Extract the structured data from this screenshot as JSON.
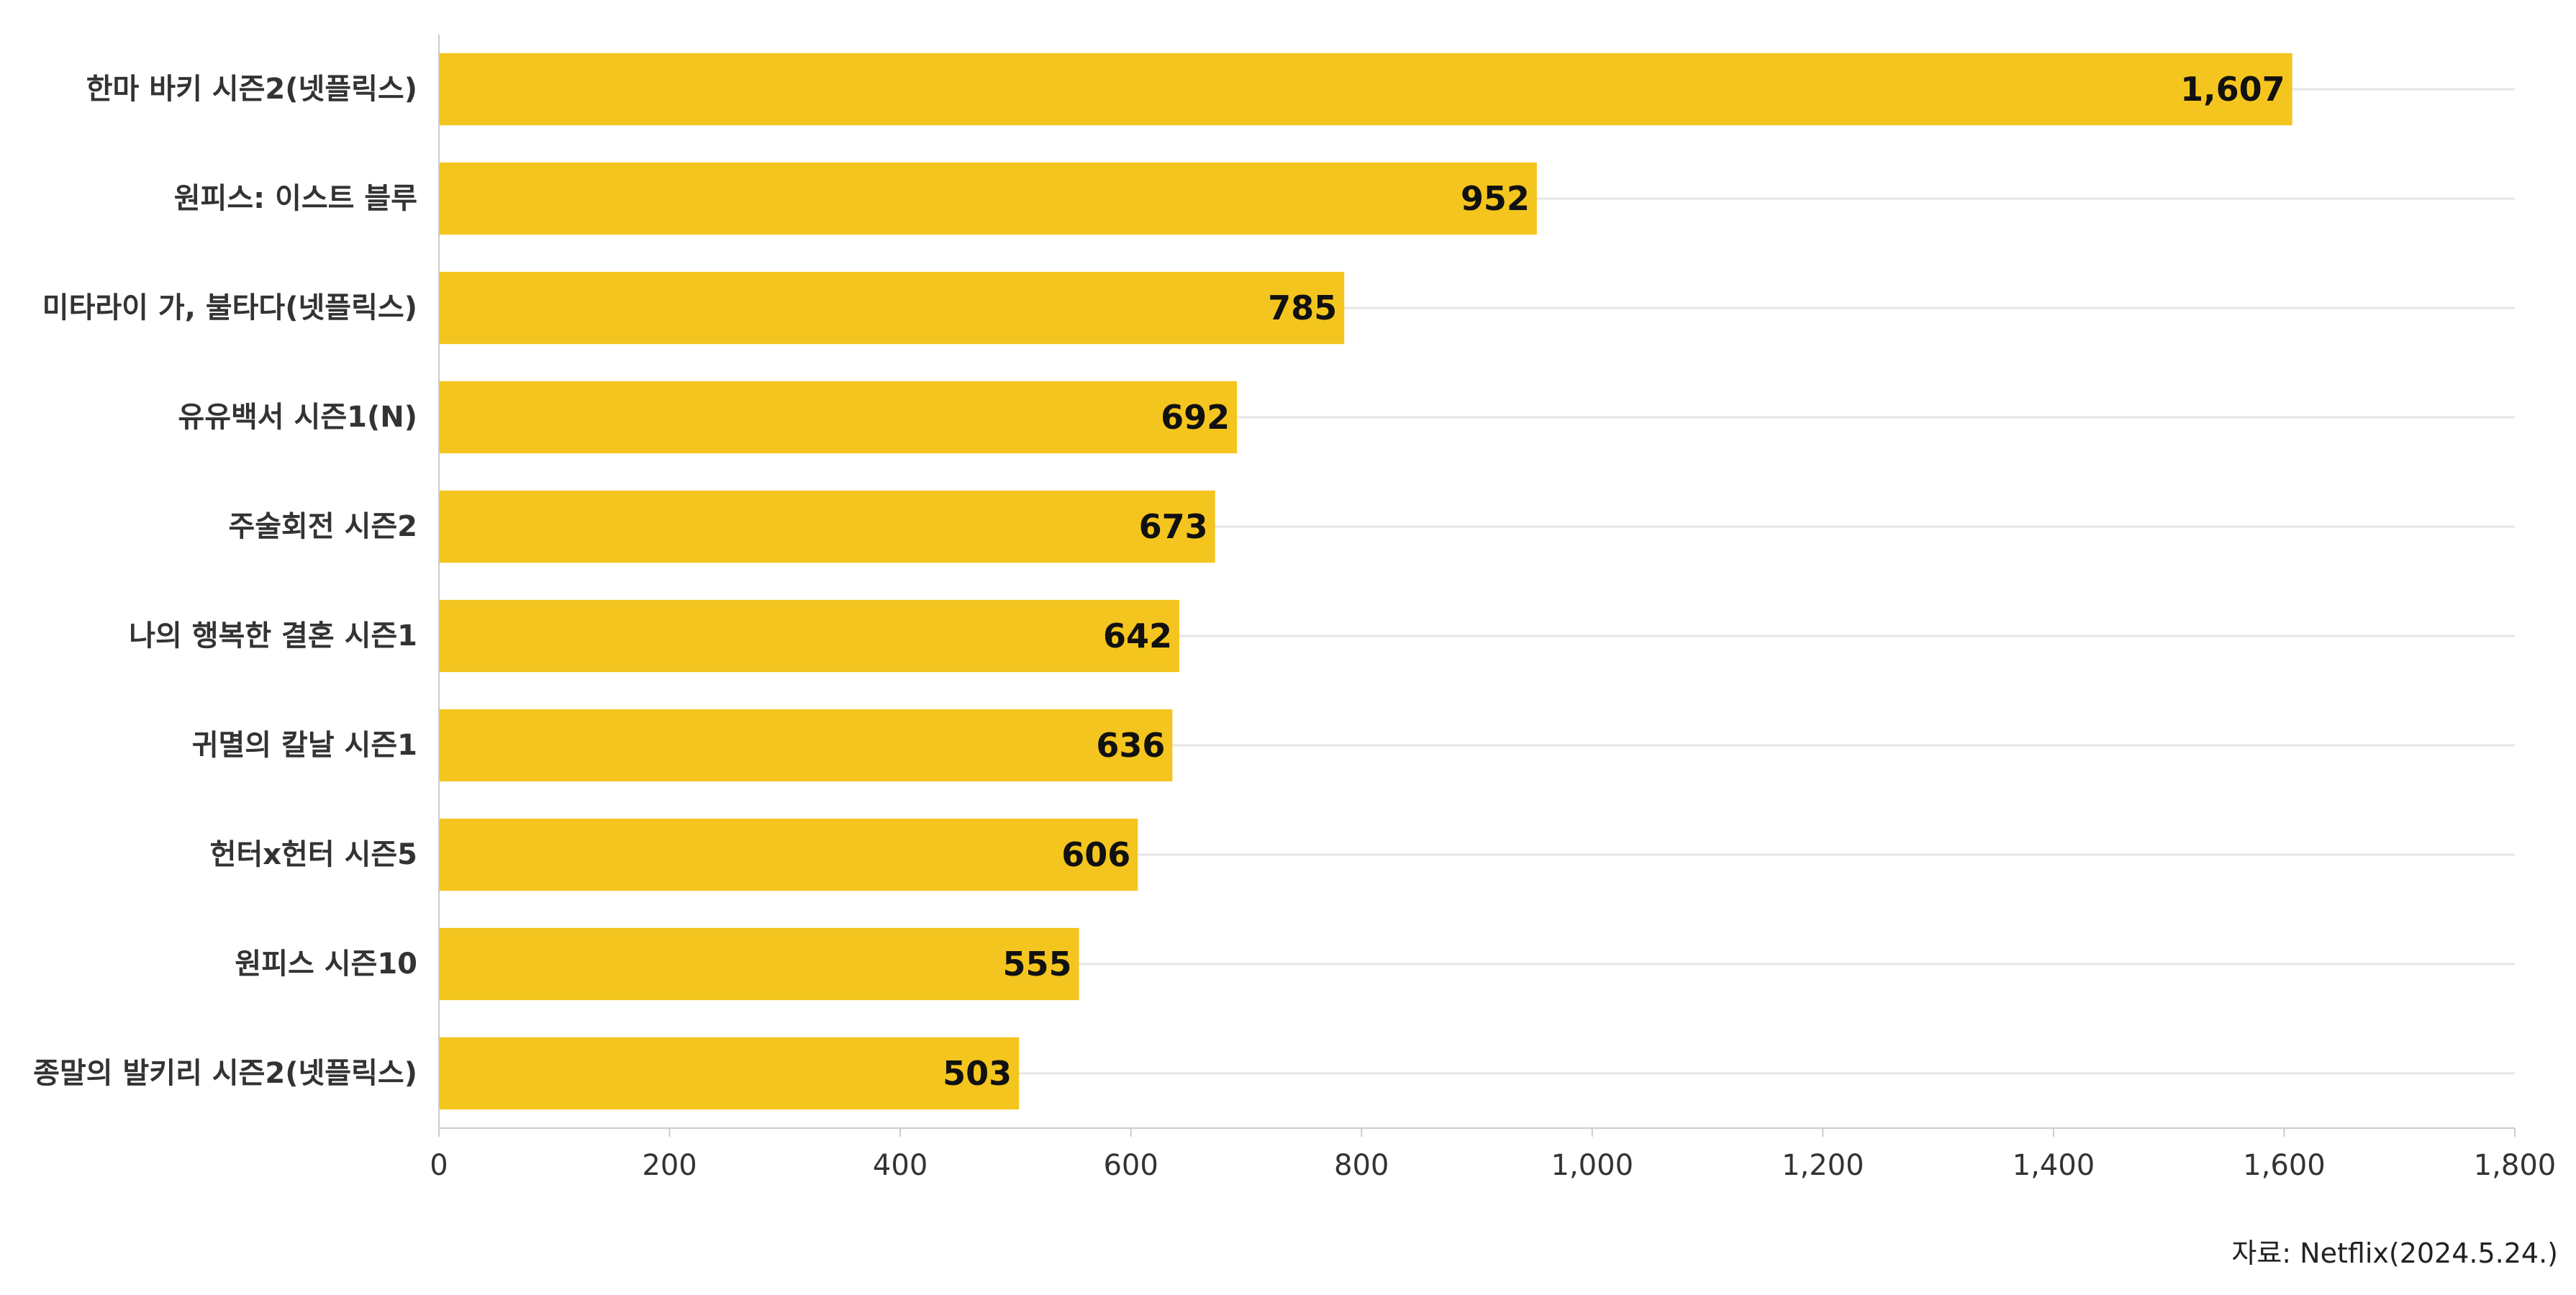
{
  "chart_data": {
    "type": "bar",
    "orientation": "horizontal",
    "categories": [
      "한마 바키 시즌2(넷플릭스)",
      "원피스: 이스트 블루",
      "미타라이 가, 불타다(넷플릭스)",
      "유유백서 시즌1(N)",
      "주술회전 시즌2",
      "나의 행복한 결혼 시즌1",
      "귀멸의 칼날 시즌1",
      "헌터x헌터 시즌5",
      "원피스 시즌10",
      "종말의 발키리 시즌2(넷플릭스)"
    ],
    "values": [
      1607,
      952,
      785,
      692,
      673,
      642,
      636,
      606,
      555,
      503
    ],
    "value_labels": [
      "1,607",
      "952",
      "785",
      "692",
      "673",
      "642",
      "636",
      "606",
      "555",
      "503"
    ],
    "xlim": [
      0,
      1800
    ],
    "xticks": [
      0,
      200,
      400,
      600,
      800,
      1000,
      1200,
      1400,
      1600,
      1800
    ],
    "xtick_labels": [
      "0",
      "200",
      "400",
      "600",
      "800",
      "1,000",
      "1,200",
      "1,400",
      "1,600",
      "1,800"
    ],
    "title": "",
    "xlabel": "",
    "ylabel": "",
    "grid": true,
    "legend": "none",
    "source": "자료: Netflix(2024.5.24.)",
    "colors": {
      "bar": "#F4C51E",
      "grid": "#E6E6E6",
      "axis": "#CCCCCC"
    }
  }
}
